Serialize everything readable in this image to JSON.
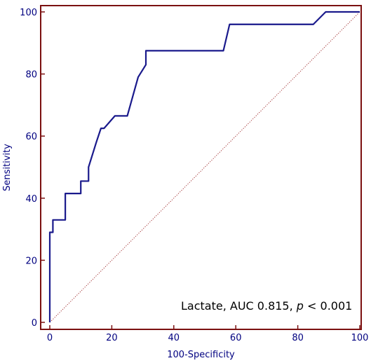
{
  "chart_data": {
    "type": "line",
    "xlabel": "100-Specificity",
    "ylabel": "Sensitivity",
    "xlim": [
      0,
      100
    ],
    "ylim": [
      0,
      100
    ],
    "x_ticks": [
      0,
      20,
      40,
      60,
      80,
      100
    ],
    "y_ticks": [
      0,
      20,
      40,
      60,
      80,
      100
    ],
    "grid": false,
    "colors": {
      "frame": "#7b1010",
      "curve": "#1a1a8c",
      "reference": "#a03030",
      "labels": "#000080"
    },
    "series": [
      {
        "x": [
          0,
          0,
          0.5,
          0.5,
          1,
          1,
          5,
          5,
          10,
          10,
          12.5,
          12.5,
          15,
          16.5,
          17.5,
          21,
          25,
          28.5,
          31,
          31,
          56,
          58,
          85,
          89,
          100
        ],
        "y": [
          0,
          29,
          29,
          29,
          29,
          33,
          33,
          41.5,
          41.5,
          45.5,
          45.5,
          50,
          58,
          62.5,
          62.5,
          66.5,
          66.5,
          79,
          83,
          87.5,
          87.5,
          96,
          96,
          100,
          100
        ]
      }
    ],
    "reference_line": {
      "x": [
        0,
        100
      ],
      "y": [
        0,
        100
      ]
    },
    "annotation": {
      "prefix": "Lactate, AUC 0.815, ",
      "p_symbol": "p",
      "suffix": " < 0.001"
    }
  }
}
